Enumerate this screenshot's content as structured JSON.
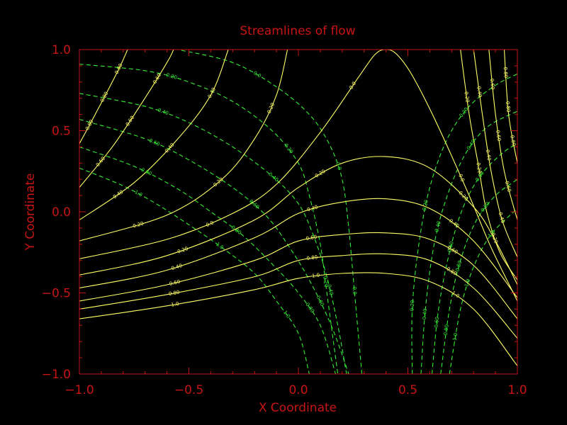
{
  "chart_data": {
    "type": "contour",
    "title": "Streamlines of flow",
    "xlabel": "X Coordinate",
    "ylabel": "Y Coordinate",
    "xlim": [
      -1.0,
      1.0
    ],
    "ylim": [
      -1.0,
      1.0
    ],
    "x_ticks": [
      -1.0,
      -0.5,
      0.0,
      0.5,
      1.0
    ],
    "y_ticks": [
      -1.0,
      -0.5,
      0.0,
      0.5,
      1.0
    ],
    "x_tick_labels": [
      "−1.0",
      "−0.5",
      "0.0",
      "0.5",
      "1.0"
    ],
    "y_tick_labels": [
      "−1.0",
      "−0.5",
      "0.0",
      "0.5",
      "1.0"
    ],
    "grid": false,
    "colors": {
      "background": "#000000",
      "axes": "#c81414",
      "stream": "#ffff66",
      "potential": "#33ee33"
    },
    "stream_series": [
      {
        "level": "0.0",
        "points": [
          [
            -1.0,
            -0.29
          ],
          [
            -0.6,
            -0.17
          ],
          [
            -0.3,
            -0.01
          ],
          [
            -0.1,
            0.17
          ],
          [
            0.1,
            0.49
          ],
          [
            0.28,
            0.84
          ],
          [
            0.35,
            0.97
          ],
          [
            0.4,
            1.0
          ],
          [
            0.45,
            0.97
          ],
          [
            0.52,
            0.84
          ],
          [
            0.63,
            0.55
          ],
          [
            0.78,
            0.1
          ],
          [
            0.88,
            -0.22
          ],
          [
            1.0,
            -0.55
          ]
        ]
      },
      {
        "level": "-0.20",
        "points": [
          [
            -1.0,
            -0.39
          ],
          [
            -0.6,
            -0.27
          ],
          [
            -0.2,
            -0.05
          ],
          [
            0.0,
            0.15
          ],
          [
            0.2,
            0.3
          ],
          [
            0.4,
            0.34
          ],
          [
            0.6,
            0.27
          ],
          [
            0.8,
            0.03
          ],
          [
            0.9,
            -0.18
          ],
          [
            1.0,
            -0.45
          ]
        ]
      },
      {
        "level": "-0.40",
        "points": [
          [
            -1.0,
            -0.47
          ],
          [
            -0.6,
            -0.36
          ],
          [
            -0.2,
            -0.16
          ],
          [
            0.0,
            -0.01
          ],
          [
            0.2,
            0.06
          ],
          [
            0.4,
            0.08
          ],
          [
            0.6,
            0.02
          ],
          [
            0.8,
            -0.18
          ],
          [
            1.0,
            -0.53
          ]
        ]
      },
      {
        "level": "-0.60",
        "points": [
          [
            -1.0,
            -0.55
          ],
          [
            -0.6,
            -0.45
          ],
          [
            -0.2,
            -0.3
          ],
          [
            0.0,
            -0.18
          ],
          [
            0.2,
            -0.14
          ],
          [
            0.4,
            -0.13
          ],
          [
            0.6,
            -0.17
          ],
          [
            0.8,
            -0.33
          ],
          [
            1.0,
            -0.66
          ]
        ]
      },
      {
        "level": "-0.80",
        "points": [
          [
            -1.0,
            -0.6
          ],
          [
            -0.6,
            -0.51
          ],
          [
            -0.2,
            -0.4
          ],
          [
            0.0,
            -0.3
          ],
          [
            0.2,
            -0.27
          ],
          [
            0.4,
            -0.26
          ],
          [
            0.6,
            -0.3
          ],
          [
            0.8,
            -0.47
          ],
          [
            1.0,
            -0.78
          ]
        ]
      },
      {
        "level": "-1.0",
        "points": [
          [
            -1.0,
            -0.66
          ],
          [
            -0.6,
            -0.58
          ],
          [
            -0.2,
            -0.48
          ],
          [
            0.0,
            -0.41
          ],
          [
            0.2,
            -0.38
          ],
          [
            0.4,
            -0.38
          ],
          [
            0.6,
            -0.43
          ],
          [
            0.8,
            -0.6
          ],
          [
            1.0,
            -0.95
          ]
        ]
      },
      {
        "level": "0.20",
        "points": [
          [
            -1.0,
            -0.18
          ],
          [
            -0.6,
            -0.02
          ],
          [
            -0.35,
            0.2
          ],
          [
            -0.2,
            0.45
          ],
          [
            -0.1,
            0.72
          ],
          [
            -0.05,
            1.0
          ]
        ]
      },
      {
        "level": "0.40",
        "points": [
          [
            -1.0,
            -0.05
          ],
          [
            -0.75,
            0.18
          ],
          [
            -0.55,
            0.45
          ],
          [
            -0.4,
            0.72
          ],
          [
            -0.32,
            1.0
          ]
        ]
      },
      {
        "level": "0.60",
        "points": [
          [
            -1.0,
            0.15
          ],
          [
            -0.85,
            0.4
          ],
          [
            -0.72,
            0.66
          ],
          [
            -0.6,
            0.92
          ],
          [
            -0.57,
            1.0
          ]
        ]
      },
      {
        "level": "0.80",
        "points": [
          [
            -1.0,
            0.42
          ],
          [
            -0.92,
            0.62
          ],
          [
            -0.82,
            0.88
          ],
          [
            -0.78,
            1.0
          ]
        ]
      },
      {
        "level": "0.20",
        "points": [
          [
            0.74,
            1.0
          ],
          [
            0.78,
            0.6
          ],
          [
            0.82,
            0.3
          ],
          [
            0.86,
            0.0
          ],
          [
            0.92,
            -0.25
          ],
          [
            1.0,
            -0.42
          ]
        ]
      },
      {
        "level": "0.40",
        "points": [
          [
            0.8,
            1.0
          ],
          [
            0.84,
            0.6
          ],
          [
            0.88,
            0.25
          ],
          [
            0.93,
            -0.05
          ],
          [
            1.0,
            -0.28
          ]
        ]
      },
      {
        "level": "0.60",
        "points": [
          [
            0.87,
            1.0
          ],
          [
            0.9,
            0.6
          ],
          [
            0.94,
            0.25
          ],
          [
            1.0,
            -0.05
          ]
        ]
      },
      {
        "level": "0.80",
        "points": [
          [
            0.94,
            1.0
          ],
          [
            0.96,
            0.6
          ],
          [
            1.0,
            0.3
          ]
        ]
      }
    ],
    "potential_series": [
      {
        "level": "0.20",
        "points": [
          [
            -1.0,
            0.91
          ],
          [
            -0.7,
            0.87
          ],
          [
            -0.5,
            0.8
          ],
          [
            -0.3,
            0.68
          ],
          [
            -0.12,
            0.5
          ],
          [
            0.0,
            0.3
          ],
          [
            0.05,
            0.1
          ],
          [
            0.1,
            -0.2
          ],
          [
            0.13,
            -0.5
          ],
          [
            0.16,
            -0.8
          ],
          [
            0.18,
            -1.0
          ]
        ]
      },
      {
        "level": "0.40",
        "points": [
          [
            -1.0,
            0.73
          ],
          [
            -0.7,
            0.65
          ],
          [
            -0.5,
            0.55
          ],
          [
            -0.3,
            0.4
          ],
          [
            -0.12,
            0.22
          ],
          [
            0.0,
            0.05
          ],
          [
            0.07,
            -0.15
          ],
          [
            0.13,
            -0.4
          ],
          [
            0.18,
            -0.7
          ],
          [
            0.22,
            -1.0
          ]
        ]
      },
      {
        "level": "0.60",
        "points": [
          [
            -1.0,
            0.57
          ],
          [
            -0.7,
            0.45
          ],
          [
            -0.5,
            0.32
          ],
          [
            -0.3,
            0.15
          ],
          [
            -0.15,
            -0.02
          ],
          [
            -0.05,
            -0.2
          ],
          [
            0.05,
            -0.42
          ],
          [
            0.15,
            -0.7
          ],
          [
            0.23,
            -1.0
          ]
        ]
      },
      {
        "level": "0.80",
        "points": [
          [
            -1.0,
            0.4
          ],
          [
            -0.75,
            0.28
          ],
          [
            -0.55,
            0.14
          ],
          [
            -0.4,
            0.0
          ],
          [
            -0.25,
            -0.15
          ],
          [
            -0.1,
            -0.35
          ],
          [
            0.0,
            -0.5
          ],
          [
            0.1,
            -0.7
          ],
          [
            0.17,
            -1.0
          ]
        ]
      },
      {
        "level": "1.0",
        "points": [
          [
            -1.0,
            0.27
          ],
          [
            -0.8,
            0.16
          ],
          [
            -0.65,
            0.05
          ],
          [
            -0.5,
            -0.08
          ],
          [
            -0.35,
            -0.22
          ],
          [
            -0.2,
            -0.38
          ],
          [
            -0.1,
            -0.55
          ],
          [
            0.0,
            -0.75
          ],
          [
            0.05,
            -1.0
          ]
        ]
      },
      {
        "level": "0.0",
        "points": [
          [
            0.29,
            -1.0
          ],
          [
            0.27,
            -0.7
          ],
          [
            0.25,
            -0.4
          ],
          [
            0.23,
            -0.1
          ],
          [
            0.2,
            0.2
          ],
          [
            0.14,
            0.42
          ],
          [
            0.05,
            0.6
          ],
          [
            -0.1,
            0.77
          ],
          [
            -0.3,
            0.92
          ],
          [
            -0.55,
            1.0
          ]
        ]
      },
      {
        "level": "-0.20",
        "points": [
          [
            0.52,
            -1.0
          ],
          [
            0.52,
            -0.6
          ],
          [
            0.55,
            -0.2
          ],
          [
            0.6,
            0.15
          ],
          [
            0.68,
            0.45
          ],
          [
            0.78,
            0.65
          ],
          [
            0.9,
            0.78
          ],
          [
            1.0,
            0.85
          ]
        ]
      },
      {
        "level": "-0.40",
        "points": [
          [
            0.56,
            -1.0
          ],
          [
            0.58,
            -0.6
          ],
          [
            0.62,
            -0.2
          ],
          [
            0.68,
            0.1
          ],
          [
            0.76,
            0.35
          ],
          [
            0.86,
            0.52
          ],
          [
            1.0,
            0.62
          ]
        ]
      },
      {
        "level": "-0.60",
        "points": [
          [
            0.61,
            -1.0
          ],
          [
            0.64,
            -0.6
          ],
          [
            0.69,
            -0.25
          ],
          [
            0.75,
            0.02
          ],
          [
            0.83,
            0.22
          ],
          [
            0.93,
            0.36
          ],
          [
            1.0,
            0.42
          ]
        ]
      },
      {
        "level": "-0.80",
        "points": [
          [
            0.65,
            -1.0
          ],
          [
            0.69,
            -0.6
          ],
          [
            0.74,
            -0.3
          ],
          [
            0.81,
            -0.06
          ],
          [
            0.9,
            0.1
          ],
          [
            1.0,
            0.2
          ]
        ]
      },
      {
        "level": "-1.0",
        "points": [
          [
            0.69,
            -1.0
          ],
          [
            0.74,
            -0.6
          ],
          [
            0.8,
            -0.34
          ],
          [
            0.88,
            -0.14
          ],
          [
            1.0,
            0.02
          ]
        ]
      }
    ]
  }
}
